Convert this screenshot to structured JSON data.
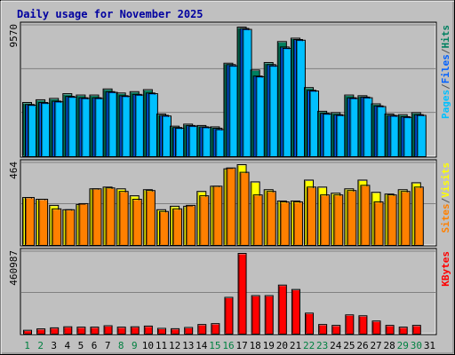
{
  "chart_data": {
    "type": "bar",
    "title": "Daily usage for November 2025",
    "days": [
      "1",
      "2",
      "3",
      "4",
      "5",
      "6",
      "7",
      "8",
      "9",
      "10",
      "11",
      "12",
      "13",
      "14",
      "15",
      "16",
      "17",
      "18",
      "19",
      "20",
      "21",
      "22",
      "23",
      "24",
      "25",
      "26",
      "27",
      "28",
      "29",
      "30",
      "31"
    ],
    "weekend_days": [
      "1",
      "2",
      "8",
      "9",
      "15",
      "16",
      "22",
      "23",
      "29",
      "30"
    ],
    "panels": [
      {
        "id": "top",
        "ymax_label": "9570",
        "ymax": 9570,
        "axis_label": [
          "Pages",
          "/",
          "Files",
          "/",
          "Hits"
        ],
        "axis_label_colors": [
          "#00c0ff",
          "#555555",
          "#0060ff",
          "#555555",
          "#008060"
        ],
        "series": [
          {
            "name": "Hits",
            "color": "#008060",
            "values": [
              4000,
              4200,
              4300,
              4650,
              4550,
              4550,
              5000,
              4700,
              4800,
              4950,
              3150,
              2250,
              2400,
              2300,
              2200,
              6900,
              9570,
              6400,
              6950,
              8500,
              8750,
              5100,
              3350,
              3250,
              4550,
              4500,
              3900,
              3150,
              3100,
              3250,
              null
            ]
          },
          {
            "name": "Files",
            "color": "#0060ff",
            "values": [
              3850,
              4000,
              4100,
              4450,
              4350,
              4350,
              4800,
              4500,
              4600,
              4700,
              3050,
              2150,
              2300,
              2200,
              2100,
              6800,
              9470,
              5950,
              6800,
              8100,
              8650,
              4900,
              3200,
              3100,
              4350,
              4400,
              3750,
              3050,
              2950,
              3100,
              null
            ]
          },
          {
            "name": "Pages",
            "color": "#00c0ff",
            "values": [
              3800,
              3950,
              4050,
              4400,
              4300,
              4300,
              4750,
              4450,
              4550,
              4650,
              3000,
              2100,
              2250,
              2150,
              2000,
              6700,
              9400,
              5900,
              6700,
              8000,
              8600,
              4850,
              3150,
              3050,
              4300,
              4350,
              3700,
              3000,
              2900,
              3050,
              null
            ]
          }
        ]
      },
      {
        "id": "mid",
        "ymax_label": "464",
        "ymax": 464,
        "axis_label": [
          "Sites",
          "/",
          "Visits"
        ],
        "axis_label_colors": [
          "#ff8000",
          "#555555",
          "#ffff00"
        ],
        "series": [
          {
            "name": "Visits",
            "color": "#ffff00",
            "values": [
              275,
              265,
              230,
              205,
              235,
              325,
              335,
              325,
              285,
              320,
              205,
              225,
              225,
              310,
              340,
              440,
              464,
              365,
              320,
              255,
              255,
              375,
              335,
              300,
              325,
              375,
              305,
              295,
              320,
              360,
              null
            ]
          },
          {
            "name": "Sites",
            "color": "#ff8000",
            "values": [
              275,
              265,
              210,
              205,
              240,
              325,
              330,
              310,
              265,
              315,
              195,
              210,
              230,
              285,
              340,
              445,
              420,
              290,
              310,
              250,
              250,
              335,
              290,
              290,
              315,
              345,
              250,
              290,
              310,
              335,
              null
            ]
          }
        ]
      },
      {
        "id": "bot",
        "ymax_label": "460987",
        "ymax": 460987,
        "axis_label": [
          "KBytes"
        ],
        "axis_label_colors": [
          "#ff0000"
        ],
        "series": [
          {
            "name": "KBytes",
            "color": "#ff0000",
            "values": [
              22000,
              30000,
              36000,
              42000,
              40000,
              40000,
              48000,
              40000,
              42000,
              46000,
              33000,
              31000,
              38000,
              55000,
              60000,
              210000,
              460987,
              220000,
              220000,
              280000,
              255000,
              120000,
              55000,
              50000,
              110000,
              105000,
              75000,
              50000,
              40000,
              50000,
              null
            ]
          }
        ]
      }
    ]
  }
}
